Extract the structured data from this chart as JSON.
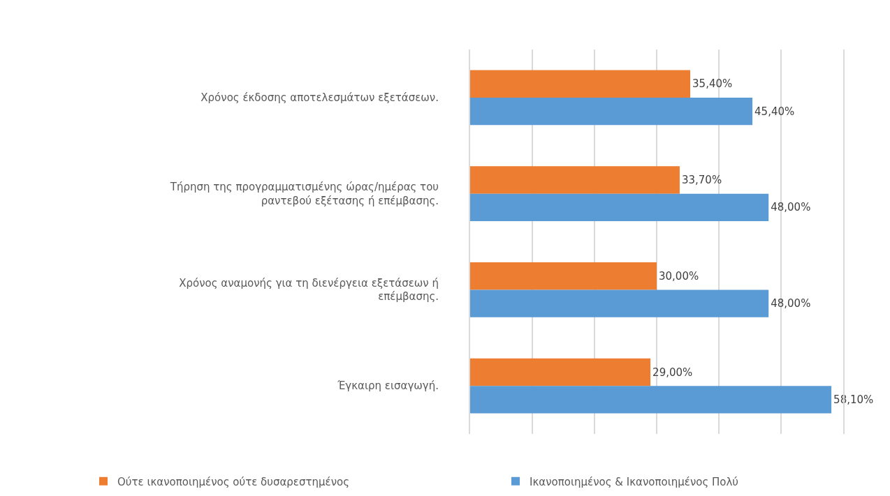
{
  "chart_data": {
    "type": "bar",
    "orientation": "horizontal",
    "categories": [
      "Χρόνος έκδοσης αποτελεσμάτων εξετάσεων.",
      "Τήρηση της προγραμματισμένης ώρας/ημέρας του ραντεβού εξέτασης ή επέμβασης.",
      "Χρόνος αναμονής για τη διενέργεια εξετάσεων ή επέμβασης.",
      "Έγκαιρη εισαγωγή."
    ],
    "series": [
      {
        "name": "Ούτε ικανοποιημένος ούτε δυσαρεστημένος",
        "color": "#ed7d31",
        "values": [
          35.4,
          33.7,
          30.0,
          29.0
        ],
        "value_labels": [
          "35,40%",
          "33,70%",
          "30,00%",
          "29,00%"
        ]
      },
      {
        "name": "Ικανοποιημένος & Ικανοποιημένος Πολύ",
        "color": "#5b9bd5",
        "values": [
          45.4,
          48.0,
          48.0,
          58.1
        ],
        "value_labels": [
          "45,40%",
          "48,00%",
          "48,00%",
          "58,10%"
        ]
      }
    ],
    "xlim": [
      0,
      60
    ],
    "xticks": [
      {
        "value": 0,
        "label": null
      },
      {
        "value": 10,
        "label": null
      },
      {
        "value": 20,
        "label": null
      },
      {
        "value": 30,
        "label": null
      },
      {
        "value": 40,
        "label": null
      },
      {
        "value": 50,
        "label": null
      },
      {
        "value": 60,
        "label": null
      }
    ],
    "grid": "x",
    "legend": "bottom",
    "tick_labels": "y"
  }
}
